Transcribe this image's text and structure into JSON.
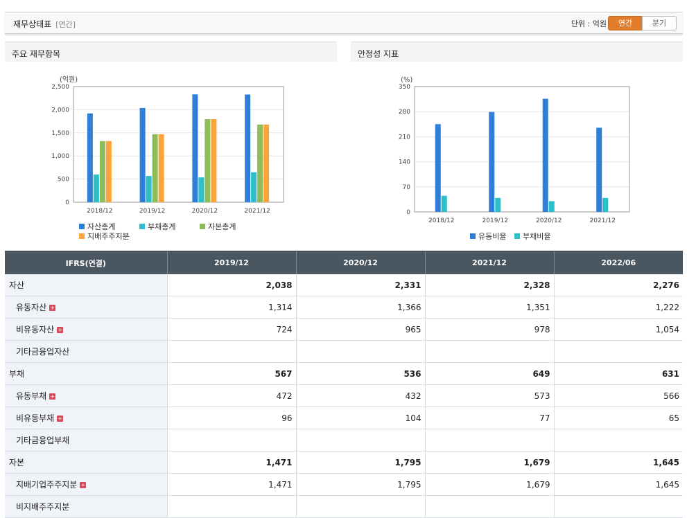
{
  "header": {
    "title": "재무상태표",
    "subtitle": "[연간]",
    "unit": "단위 : 억원",
    "toggle_on": "연간",
    "toggle_off": "분기"
  },
  "panels": {
    "left_title": "주요 재무항목",
    "right_title": "안정성 지표"
  },
  "chart_data": [
    {
      "type": "bar",
      "ylabel": "(억원)",
      "categories": [
        "2018/12",
        "2019/12",
        "2020/12",
        "2021/12"
      ],
      "ylim": [
        0,
        2500
      ],
      "yticks": [
        "0",
        "500",
        "1,000",
        "1,500",
        "2,000",
        "2,500"
      ],
      "grid": true,
      "legend": "bottom",
      "series": [
        {
          "name": "자산총계",
          "color": "#2f7ed8",
          "values": [
            1920,
            2038,
            2331,
            2328
          ]
        },
        {
          "name": "부채총계",
          "color": "#2bbfc9",
          "values": [
            598,
            567,
            536,
            649
          ]
        },
        {
          "name": "자본총계",
          "color": "#8dbc5a",
          "values": [
            1322,
            1471,
            1795,
            1679
          ]
        },
        {
          "name": "지배주주지분",
          "color": "#fba43a",
          "values": [
            1322,
            1471,
            1795,
            1679
          ]
        }
      ]
    },
    {
      "type": "bar",
      "ylabel": "(%)",
      "categories": [
        "2018/12",
        "2019/12",
        "2020/12",
        "2021/12"
      ],
      "ylim": [
        0,
        350
      ],
      "yticks": [
        "0",
        "70",
        "140",
        "210",
        "280",
        "350"
      ],
      "grid": true,
      "legend": "bottom",
      "series": [
        {
          "name": "유동비율",
          "color": "#2f7ed8",
          "values": [
            245,
            279,
            316,
            235
          ]
        },
        {
          "name": "부채비율",
          "color": "#2bbfc9",
          "values": [
            45,
            39,
            30,
            39
          ]
        }
      ]
    }
  ],
  "table": {
    "columns": [
      "IFRS(연결)",
      "2019/12",
      "2020/12",
      "2021/12",
      "2022/06"
    ],
    "rows": [
      {
        "label": "자산",
        "major": true,
        "expand": false,
        "values": [
          "2,038",
          "2,331",
          "2,328",
          "2,276"
        ]
      },
      {
        "label": "유동자산",
        "major": false,
        "expand": true,
        "values": [
          "1,314",
          "1,366",
          "1,351",
          "1,222"
        ]
      },
      {
        "label": "비유동자산",
        "major": false,
        "expand": true,
        "values": [
          "724",
          "965",
          "978",
          "1,054"
        ]
      },
      {
        "label": "기타금융업자산",
        "major": false,
        "expand": false,
        "values": [
          "",
          "",
          "",
          ""
        ]
      },
      {
        "label": "부채",
        "major": true,
        "expand": false,
        "values": [
          "567",
          "536",
          "649",
          "631"
        ]
      },
      {
        "label": "유동부채",
        "major": false,
        "expand": true,
        "values": [
          "472",
          "432",
          "573",
          "566"
        ]
      },
      {
        "label": "비유동부채",
        "major": false,
        "expand": true,
        "values": [
          "96",
          "104",
          "77",
          "65"
        ]
      },
      {
        "label": "기타금융업부채",
        "major": false,
        "expand": false,
        "values": [
          "",
          "",
          "",
          ""
        ]
      },
      {
        "label": "자본",
        "major": true,
        "expand": false,
        "values": [
          "1,471",
          "1,795",
          "1,679",
          "1,645"
        ]
      },
      {
        "label": "지배기업주주지분",
        "major": false,
        "expand": true,
        "values": [
          "1,471",
          "1,795",
          "1,679",
          "1,645"
        ]
      },
      {
        "label": "비지배주주지분",
        "major": false,
        "expand": false,
        "values": [
          "",
          "",
          "",
          ""
        ]
      }
    ]
  },
  "icons": {
    "expand": "plus-icon"
  }
}
